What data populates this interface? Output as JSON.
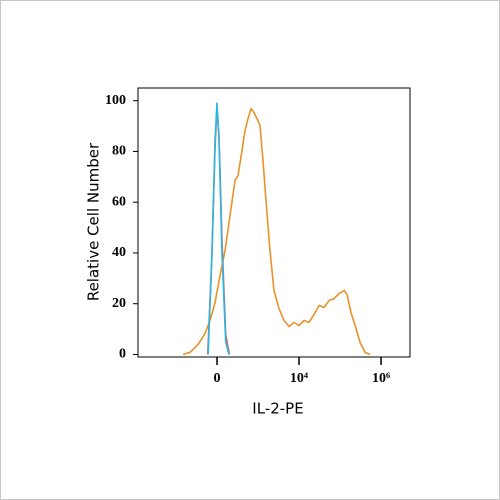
{
  "chart_data": {
    "type": "line",
    "xlabel": "IL-2-PE",
    "ylabel": "Relative Cell Number",
    "xscale": "biexponential",
    "xlim": [
      -8450,
      5080000
    ],
    "ylim": [
      -1,
      105
    ],
    "xticks": [
      0,
      {
        "value": 10000,
        "label": "10⁴"
      },
      {
        "value": 1000000,
        "label": "10⁶"
      }
    ],
    "yticks": [
      0,
      20,
      40,
      60,
      80,
      100
    ],
    "series": [
      {
        "color": "#e8922a",
        "x": [
          -660,
          -433,
          -256,
          -145,
          -81,
          -22,
          34,
          93,
          159,
          238,
          294,
          382,
          461,
          553,
          660,
          786,
          934,
          1110,
          1316,
          1560,
          1956,
          2452,
          3248,
          4308,
          5700,
          7540,
          10000,
          13240,
          17540,
          23230,
          30770,
          40740,
          53950,
          71450,
          94630,
          125300,
          148300,
          185300,
          232300,
          307700,
          407400,
          539500
        ],
        "values": [
          0,
          0.8,
          3.9,
          8.3,
          13.4,
          20.5,
          31.1,
          40.9,
          54.7,
          68.5,
          70.5,
          80.3,
          88.2,
          92.9,
          96.9,
          95.3,
          92.9,
          90.2,
          76.4,
          60.6,
          40.9,
          25.2,
          18.1,
          13.4,
          11,
          12.6,
          11.4,
          13.4,
          12.6,
          15.7,
          19.3,
          18.5,
          21.3,
          22,
          24,
          25.2,
          23.6,
          16.5,
          11.4,
          4.7,
          0.8,
          0
        ]
      },
      {
        "color": "#e06666",
        "x": [
          -110,
          -60,
          -22,
          0,
          22,
          57,
          101,
          150
        ],
        "values": [
          0,
          38,
          82,
          97,
          86,
          45,
          8,
          0
        ]
      },
      {
        "color": "#29b6e0",
        "x": [
          -105,
          -57,
          -22,
          0,
          22,
          57,
          101,
          145
        ],
        "values": [
          0,
          40,
          85,
          99,
          85,
          40,
          5,
          0
        ]
      }
    ]
  }
}
